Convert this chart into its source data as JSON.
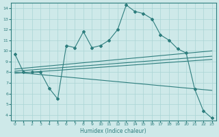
{
  "title": "",
  "xlabel": "Humidex (Indice chaleur)",
  "ylabel": "",
  "bg_color": "#cee9e9",
  "grid_color": "#aad4d4",
  "line_color": "#2d7d7d",
  "xlim": [
    -0.5,
    23.5
  ],
  "ylim": [
    3.5,
    14.5
  ],
  "xticks": [
    0,
    1,
    2,
    3,
    4,
    5,
    6,
    7,
    8,
    9,
    10,
    11,
    12,
    13,
    14,
    15,
    16,
    17,
    18,
    19,
    20,
    21,
    22,
    23
  ],
  "yticks": [
    4,
    5,
    6,
    7,
    8,
    9,
    10,
    11,
    12,
    13,
    14
  ],
  "main_x": [
    0,
    1,
    2,
    3,
    4,
    5,
    6,
    7,
    8,
    9,
    10,
    11,
    12,
    13,
    14,
    15,
    16,
    17,
    18,
    19,
    20,
    21,
    22,
    23
  ],
  "main_y": [
    9.7,
    8.0,
    8.0,
    8.0,
    6.5,
    5.5,
    10.5,
    10.3,
    11.8,
    10.3,
    10.5,
    11.0,
    12.0,
    14.3,
    13.7,
    13.5,
    13.0,
    11.5,
    11.0,
    10.2,
    9.8,
    6.4,
    4.4,
    3.7
  ],
  "trend1_x": [
    0,
    23
  ],
  "trend1_y": [
    8.3,
    10.0
  ],
  "trend2_x": [
    0,
    23
  ],
  "trend2_y": [
    8.1,
    9.5
  ],
  "trend3_x": [
    0,
    23
  ],
  "trend3_y": [
    7.9,
    9.2
  ],
  "trend4_x": [
    0,
    23
  ],
  "trend4_y": [
    8.0,
    6.3
  ]
}
